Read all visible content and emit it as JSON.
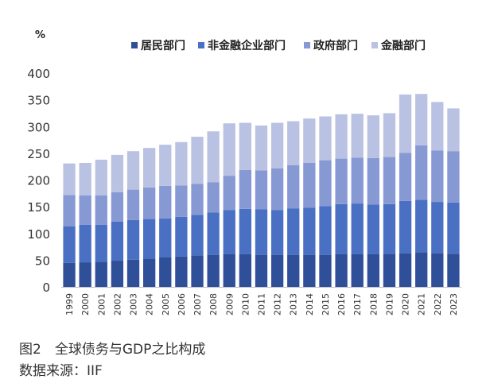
{
  "caption": {
    "figure": "图2　全球债务与GDP之比构成",
    "source": "数据来源：IIF"
  },
  "colors": {
    "household": "#2f4f99",
    "nonfinancial_corp": "#4a70c4",
    "government": "#8799d3",
    "financial": "#b9c2e3"
  },
  "chart_data": {
    "type": "bar",
    "stacked": true,
    "title": "",
    "xlabel": "",
    "ylabel": "%",
    "ylim": [
      0,
      400
    ],
    "yticks": [
      0,
      50,
      100,
      150,
      200,
      250,
      300,
      350,
      400
    ],
    "grid": false,
    "legend_position": "top-right",
    "categories": [
      "1999",
      "2000",
      "2001",
      "2002",
      "2003",
      "2004",
      "2005",
      "2006",
      "2007",
      "2008",
      "2009",
      "2010",
      "2011",
      "2012",
      "2013",
      "2014",
      "2015",
      "2016",
      "2017",
      "2018",
      "2019",
      "2020",
      "2021",
      "2022",
      "2023"
    ],
    "series": [
      {
        "name": "居民部门",
        "color": "#2f4f99",
        "values": [
          45,
          46,
          47,
          49,
          51,
          53,
          55,
          57,
          59,
          60,
          61,
          61,
          60,
          60,
          60,
          60,
          60,
          61,
          61,
          61,
          62,
          63,
          65,
          63,
          62
        ]
      },
      {
        "name": "非金融企业部门",
        "color": "#4a70c4",
        "values": [
          68,
          70,
          69,
          73,
          74,
          74,
          73,
          74,
          76,
          79,
          83,
          85,
          85,
          84,
          87,
          88,
          91,
          94,
          95,
          93,
          93,
          98,
          98,
          96,
          96
        ]
      },
      {
        "name": "政府部门",
        "color": "#8799d3",
        "values": [
          59,
          55,
          55,
          55,
          57,
          59,
          61,
          59,
          58,
          57,
          64,
          73,
          73,
          78,
          81,
          84,
          86,
          85,
          86,
          87,
          88,
          90,
          102,
          96,
          96
        ]
      },
      {
        "name": "金融部门",
        "color": "#b9c2e3",
        "values": [
          59,
          61,
          67,
          70,
          72,
          74,
          77,
          81,
          88,
          95,
          98,
          88,
          84,
          85,
          82,
          83,
          82,
          83,
          82,
          80,
          82,
          109,
          96,
          91,
          80
        ]
      }
    ]
  }
}
